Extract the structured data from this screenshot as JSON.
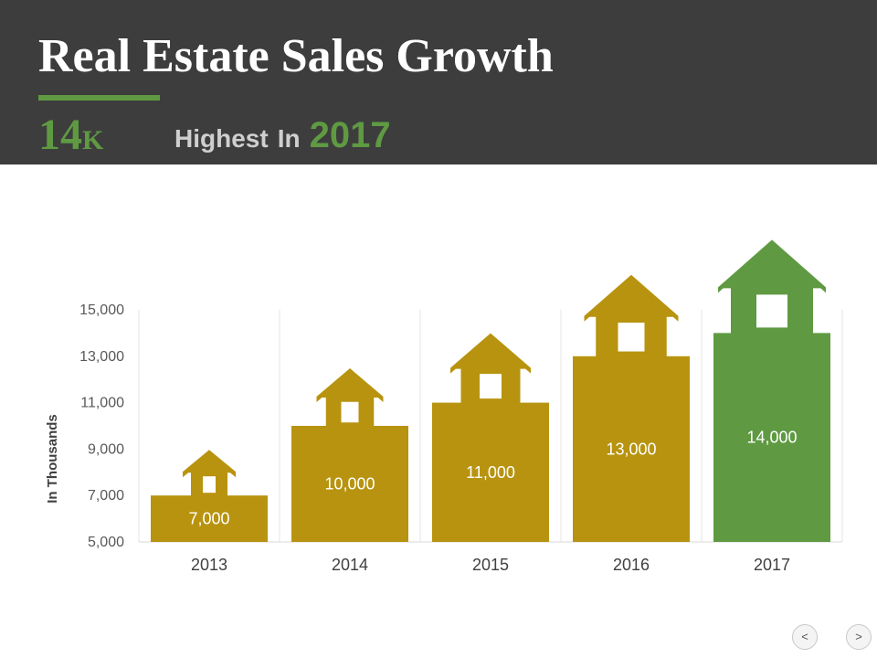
{
  "header": {
    "title": "Real Estate Sales Growth",
    "highlight_number": "14",
    "highlight_unit": "K",
    "highlight_text_1": "Highest",
    "highlight_text_2": "In",
    "highlight_year": "2017"
  },
  "chart_data": {
    "type": "bar",
    "title": "",
    "ylabel": "In Thousands",
    "xlabel": "",
    "ylim": [
      5000,
      15000
    ],
    "yticks": [
      5000,
      7000,
      9000,
      11000,
      13000,
      15000
    ],
    "ytick_labels": [
      "5,000",
      "7,000",
      "9,000",
      "11,000",
      "13,000",
      "15,000"
    ],
    "categories": [
      "2013",
      "2014",
      "2015",
      "2016",
      "2017"
    ],
    "values": [
      7000,
      10000,
      11000,
      13000,
      14000
    ],
    "value_labels": [
      "7,000",
      "10,000",
      "11,000",
      "13,000",
      "14,000"
    ],
    "bar_colors": [
      "#b8930f",
      "#b8930f",
      "#b8930f",
      "#b8930f",
      "#5f9a42"
    ],
    "bar_style": "house-shaped bars with roofs",
    "grid": "vertical separators"
  },
  "nav": {
    "prev_label": "<",
    "next_label": ">"
  },
  "colors": {
    "header_bg": "#3d3d3d",
    "accent_green": "#5f9a42",
    "bar_gold": "#b8930f"
  }
}
